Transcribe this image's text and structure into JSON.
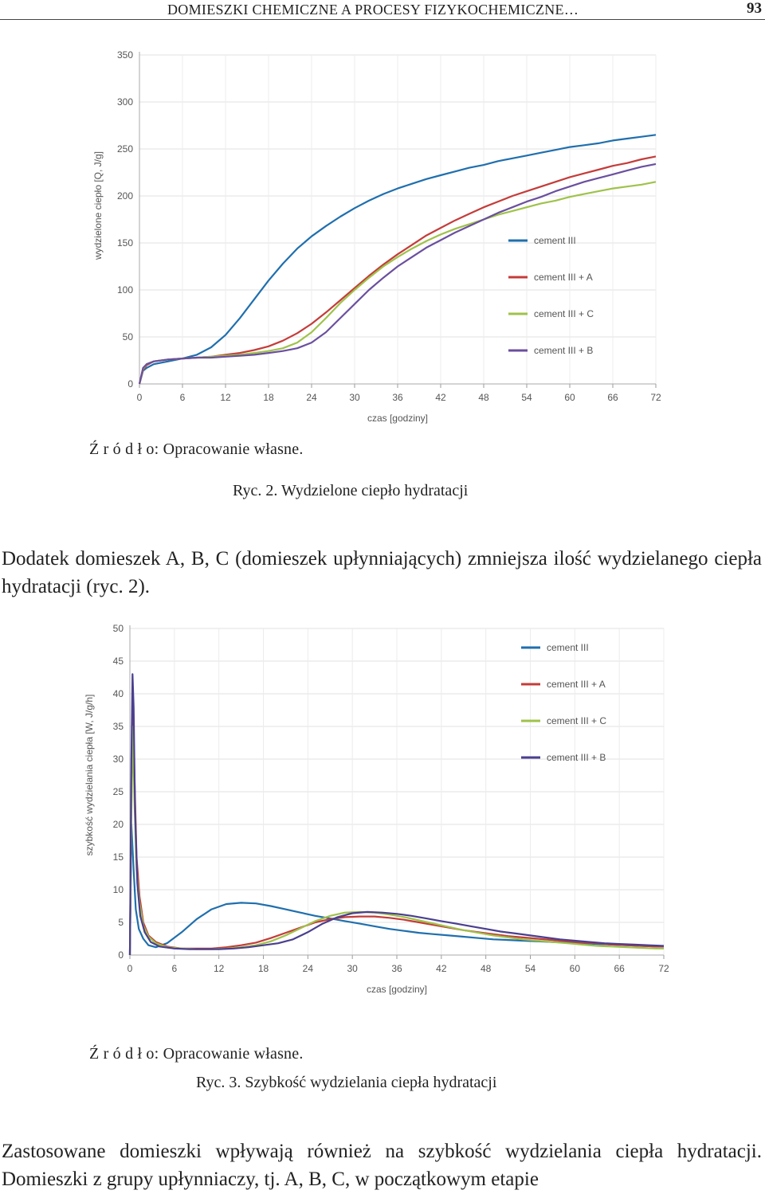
{
  "header": {
    "title": "DOMIESZKI CHEMICZNE A PROCESY FIZYKOCHEMICZNE…",
    "page_number": "93"
  },
  "chart_data": [
    {
      "type": "line",
      "ylabel": "wydzielone ciepło [Q, J/g]",
      "xlabel": "czas [godziny]",
      "xlim": [
        0,
        72
      ],
      "ylim": [
        0,
        350
      ],
      "xticks": [
        "0",
        "6",
        "12",
        "18",
        "24",
        "30",
        "36",
        "42",
        "48",
        "54",
        "60",
        "66",
        "72"
      ],
      "yticks": [
        "0",
        "50",
        "100",
        "150",
        "200",
        "250",
        "300",
        "350"
      ],
      "grid": true,
      "legend_position": "right",
      "series": [
        {
          "name": "cement III",
          "color": "#1f6fae",
          "x": [
            0,
            0.5,
            1,
            2,
            4,
            6,
            8,
            10,
            12,
            14,
            16,
            18,
            20,
            22,
            24,
            26,
            28,
            30,
            32,
            34,
            36,
            38,
            40,
            42,
            44,
            46,
            48,
            50,
            52,
            54,
            56,
            58,
            60,
            62,
            64,
            66,
            68,
            70,
            72
          ],
          "y": [
            0,
            14,
            17,
            21,
            24,
            27,
            31,
            39,
            52,
            70,
            90,
            110,
            128,
            144,
            157,
            168,
            178,
            187,
            195,
            202,
            208,
            213,
            218,
            222,
            226,
            230,
            233,
            237,
            240,
            243,
            246,
            249,
            252,
            254,
            256,
            259,
            261,
            263,
            265
          ]
        },
        {
          "name": "cement III + A",
          "color": "#c43c3a",
          "x": [
            0,
            0.5,
            1,
            2,
            4,
            6,
            8,
            10,
            12,
            14,
            16,
            18,
            20,
            22,
            24,
            26,
            28,
            30,
            32,
            34,
            36,
            38,
            40,
            42,
            44,
            46,
            48,
            50,
            52,
            54,
            56,
            58,
            60,
            62,
            64,
            66,
            68,
            70,
            72
          ],
          "y": [
            0,
            15,
            20,
            24,
            26,
            27,
            28,
            29,
            31,
            33,
            36,
            40,
            46,
            54,
            64,
            76,
            89,
            102,
            115,
            127,
            138,
            148,
            158,
            166,
            174,
            181,
            188,
            194,
            200,
            205,
            210,
            215,
            220,
            224,
            228,
            232,
            235,
            239,
            242
          ]
        },
        {
          "name": "cement III + C",
          "color": "#9fc24a",
          "x": [
            0,
            0.5,
            1,
            2,
            4,
            6,
            8,
            10,
            12,
            14,
            16,
            18,
            20,
            22,
            24,
            26,
            28,
            30,
            32,
            34,
            36,
            38,
            40,
            42,
            44,
            46,
            48,
            50,
            52,
            54,
            56,
            58,
            60,
            62,
            64,
            66,
            68,
            70,
            72
          ],
          "y": [
            0,
            16,
            21,
            24,
            26,
            27,
            28,
            29,
            30,
            31,
            33,
            35,
            38,
            44,
            55,
            70,
            86,
            100,
            113,
            125,
            135,
            144,
            152,
            159,
            165,
            170,
            175,
            180,
            184,
            188,
            192,
            195,
            199,
            202,
            205,
            208,
            210,
            212,
            215
          ]
        },
        {
          "name": "cement III + B",
          "color": "#6a4f9e",
          "x": [
            0,
            0.5,
            1,
            2,
            4,
            6,
            8,
            10,
            12,
            14,
            16,
            18,
            20,
            22,
            24,
            26,
            28,
            30,
            32,
            34,
            36,
            38,
            40,
            42,
            44,
            46,
            48,
            50,
            52,
            54,
            56,
            58,
            60,
            62,
            64,
            66,
            68,
            70,
            72
          ],
          "y": [
            0,
            17,
            21,
            24,
            26,
            27,
            28,
            28,
            29,
            30,
            31,
            33,
            35,
            38,
            44,
            55,
            70,
            85,
            100,
            113,
            125,
            135,
            145,
            153,
            161,
            168,
            175,
            182,
            188,
            194,
            199,
            205,
            210,
            215,
            219,
            223,
            227,
            231,
            234
          ]
        }
      ]
    },
    {
      "type": "line",
      "ylabel": "szybkość wydzielania ciepła [W, J/g/h]",
      "xlabel": "czas [godziny]",
      "xlim": [
        0,
        72
      ],
      "ylim": [
        0,
        50
      ],
      "xticks": [
        "0",
        "6",
        "12",
        "18",
        "24",
        "30",
        "36",
        "42",
        "48",
        "54",
        "60",
        "66",
        "72"
      ],
      "yticks": [
        "0",
        "5",
        "10",
        "15",
        "20",
        "25",
        "30",
        "35",
        "40",
        "45",
        "50"
      ],
      "grid": true,
      "legend_position": "top-right",
      "series": [
        {
          "name": "cement III",
          "color": "#1f6fae",
          "x": [
            0,
            0.2,
            0.5,
            0.8,
            1.2,
            1.8,
            2.5,
            3.5,
            5,
            7,
            9,
            11,
            13,
            15,
            17,
            19,
            21,
            23,
            25,
            27,
            29,
            31,
            33,
            35,
            37,
            39,
            41,
            43,
            45,
            47,
            49,
            51,
            53,
            55,
            57,
            59,
            61,
            63,
            65,
            67,
            69,
            71,
            72
          ],
          "y": [
            0,
            20,
            13,
            7,
            4,
            2.5,
            1.5,
            1.2,
            1.8,
            3.5,
            5.5,
            7,
            7.8,
            8,
            7.9,
            7.5,
            7,
            6.5,
            6,
            5.6,
            5.2,
            4.8,
            4.4,
            4,
            3.7,
            3.4,
            3.2,
            3,
            2.8,
            2.6,
            2.4,
            2.3,
            2.2,
            2.1,
            2,
            1.9,
            1.8,
            1.7,
            1.6,
            1.5,
            1.4,
            1.3,
            1.3
          ]
        },
        {
          "name": "cement III + A",
          "color": "#c43c3a",
          "x": [
            0,
            0.2,
            0.4,
            0.6,
            0.9,
            1.3,
            1.8,
            2.5,
            3.5,
            5,
            7,
            9,
            11,
            13,
            15,
            17,
            19,
            21,
            23,
            25,
            27,
            29,
            31,
            33,
            35,
            37,
            39,
            41,
            43,
            45,
            47,
            49,
            51,
            53,
            55,
            57,
            59,
            61,
            63,
            65,
            67,
            69,
            71,
            72
          ],
          "y": [
            0,
            25,
            40,
            28,
            15,
            9,
            5,
            3,
            2,
            1.3,
            1,
            1,
            1,
            1.2,
            1.5,
            1.9,
            2.6,
            3.4,
            4.2,
            5,
            5.5,
            5.8,
            5.9,
            5.9,
            5.7,
            5.4,
            5,
            4.6,
            4.2,
            3.8,
            3.5,
            3.2,
            2.9,
            2.7,
            2.5,
            2.3,
            2.1,
            1.9,
            1.8,
            1.6,
            1.5,
            1.4,
            1.3,
            1.3
          ]
        },
        {
          "name": "cement III + C",
          "color": "#9fc24a",
          "x": [
            0,
            0.2,
            0.4,
            0.6,
            0.9,
            1.3,
            1.8,
            2.5,
            3.5,
            5,
            7,
            9,
            11,
            13,
            15,
            17,
            19,
            21,
            23,
            25,
            27,
            29,
            31,
            33,
            35,
            37,
            39,
            41,
            43,
            45,
            47,
            49,
            51,
            53,
            55,
            57,
            59,
            61,
            63,
            65,
            67,
            69,
            71,
            72
          ],
          "y": [
            0,
            22,
            35,
            24,
            13,
            8,
            4.5,
            2.8,
            1.8,
            1.2,
            1,
            0.9,
            0.9,
            1,
            1.2,
            1.5,
            2.1,
            3,
            4.1,
            5.2,
            6,
            6.5,
            6.6,
            6.5,
            6.2,
            5.8,
            5.3,
            4.8,
            4.3,
            3.8,
            3.4,
            3,
            2.7,
            2.4,
            2.2,
            2,
            1.8,
            1.6,
            1.4,
            1.3,
            1.2,
            1.1,
            1,
            1
          ]
        },
        {
          "name": "cement III + B",
          "color": "#4a3f8f",
          "x": [
            0,
            0.2,
            0.35,
            0.5,
            0.7,
            1,
            1.4,
            2,
            2.8,
            4,
            6,
            8,
            10,
            12,
            14,
            16,
            18,
            20,
            22,
            24,
            26,
            28,
            30,
            32,
            34,
            36,
            38,
            40,
            42,
            44,
            46,
            48,
            50,
            52,
            54,
            56,
            58,
            60,
            62,
            64,
            66,
            68,
            70,
            72
          ],
          "y": [
            0,
            30,
            43,
            38,
            22,
            11,
            6,
            3.5,
            2,
            1.3,
            1,
            0.9,
            0.9,
            0.9,
            1,
            1.2,
            1.5,
            1.8,
            2.4,
            3.5,
            4.8,
            5.8,
            6.4,
            6.6,
            6.5,
            6.3,
            6,
            5.6,
            5.2,
            4.8,
            4.4,
            4,
            3.6,
            3.3,
            3,
            2.7,
            2.4,
            2.2,
            2,
            1.8,
            1.7,
            1.6,
            1.5,
            1.4
          ]
        }
      ]
    }
  ],
  "source_1": "Ź r ó d ł o: Opracowanie własne.",
  "caption_1": "Ryc. 2. Wydzielone ciepło hydratacji",
  "paragraph_1": "Dodatek domieszek A, B, C (domieszek upłynniających) zmniejsza ilość wydzielanego ciepła hydratacji (ryc. 2).",
  "source_2": "Ź r ó d ł o: Opracowanie własne.",
  "caption_2": "Ryc. 3. Szybkość wydzielania ciepła hydratacji",
  "paragraph_2": "Zastosowane domieszki wpływają również na szybkość wydzielania ciepła hydratacji. Domieszki z grupy upłynniaczy, tj. A, B, C, w początkowym etapie"
}
